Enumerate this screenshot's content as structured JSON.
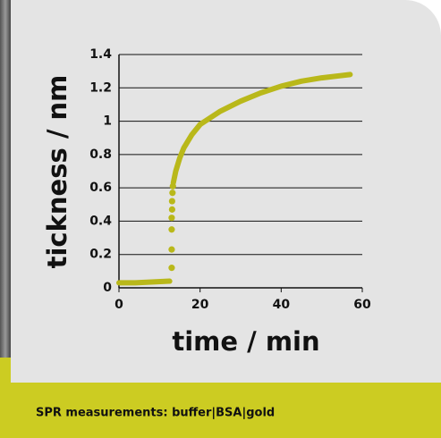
{
  "chart_data": {
    "type": "line",
    "xlabel": "time / min",
    "ylabel": "tickness / nm",
    "caption": "SPR measurements: buffer|BSA|gold",
    "xlim": [
      0,
      60
    ],
    "xticks": [
      0,
      20,
      40,
      60
    ],
    "ylim": [
      0,
      1.4
    ],
    "yticks": [
      0,
      0.2,
      0.4,
      0.6,
      0.8,
      1,
      1.2,
      1.4
    ],
    "grid": true,
    "series": [
      {
        "style": "line",
        "color": "#b9b81a",
        "x": [
          0,
          4,
          8,
          12.5
        ],
        "values": [
          0.03,
          0.03,
          0.035,
          0.04
        ]
      },
      {
        "style": "dots",
        "color": "#b9b81a",
        "x": [
          13,
          13,
          13,
          13,
          13.1,
          13.1,
          13.2,
          13.3
        ],
        "values": [
          0.12,
          0.23,
          0.35,
          0.42,
          0.47,
          0.52,
          0.57,
          0.61
        ]
      },
      {
        "style": "line",
        "color": "#b9b81a",
        "x": [
          13.4,
          14,
          15,
          16,
          18,
          20,
          25,
          30,
          35,
          40,
          45,
          50,
          57
        ],
        "values": [
          0.63,
          0.7,
          0.78,
          0.84,
          0.92,
          0.98,
          1.06,
          1.12,
          1.17,
          1.21,
          1.24,
          1.26,
          1.28
        ]
      }
    ]
  }
}
